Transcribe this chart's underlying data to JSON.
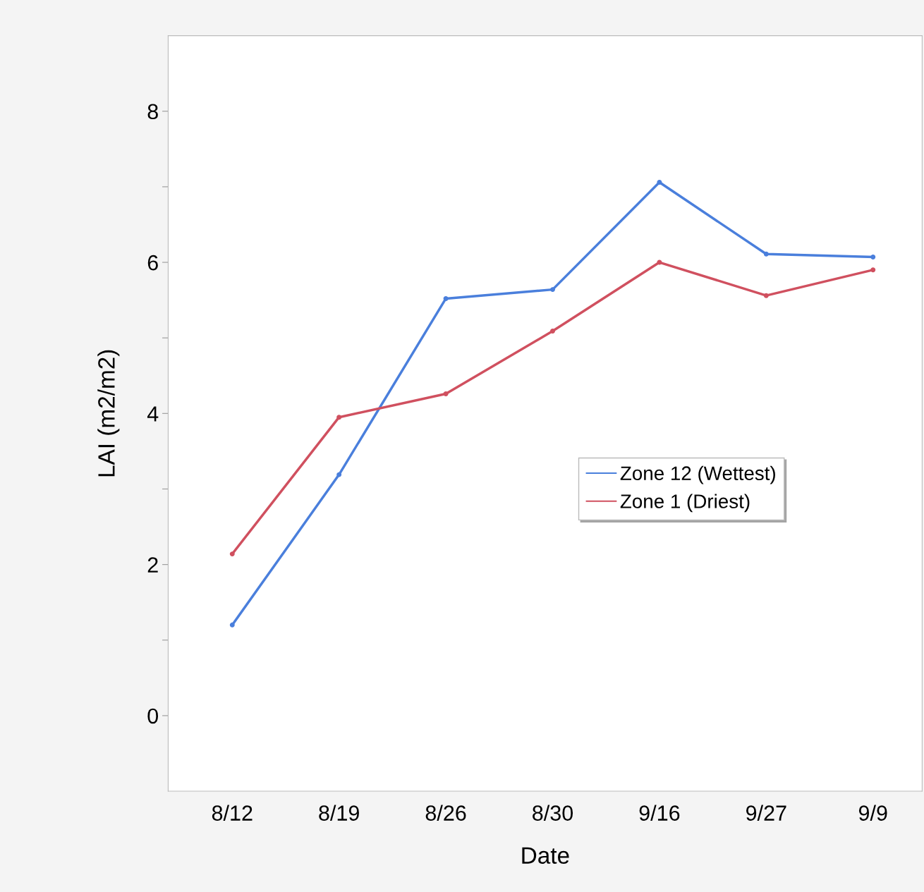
{
  "chart_data": {
    "type": "line",
    "xlabel": "Date",
    "ylabel": "LAI (m2/m2)",
    "categories": [
      "8/12",
      "8/19",
      "8/26",
      "8/30",
      "9/16",
      "9/27",
      "9/9"
    ],
    "series": [
      {
        "name": "Zone 12 (Wettest)",
        "color": "#4a7fdc",
        "values": [
          1.2,
          3.19,
          5.52,
          5.64,
          7.06,
          6.11,
          6.07
        ]
      },
      {
        "name": "Zone 1 (Driest)",
        "color": "#d0505f",
        "values": [
          2.14,
          3.95,
          4.26,
          5.09,
          6.0,
          5.56,
          5.9
        ]
      }
    ],
    "ylim": [
      -1,
      9
    ],
    "yticks": [
      0,
      {
        "value": 1,
        "label": null
      },
      2,
      {
        "value": 3,
        "label": null
      },
      4,
      {
        "value": 5,
        "label": null
      },
      6,
      {
        "value": 7,
        "label": null
      },
      8
    ],
    "grid": false,
    "legend": "right",
    "marker": "circle",
    "line_style": "solid"
  }
}
